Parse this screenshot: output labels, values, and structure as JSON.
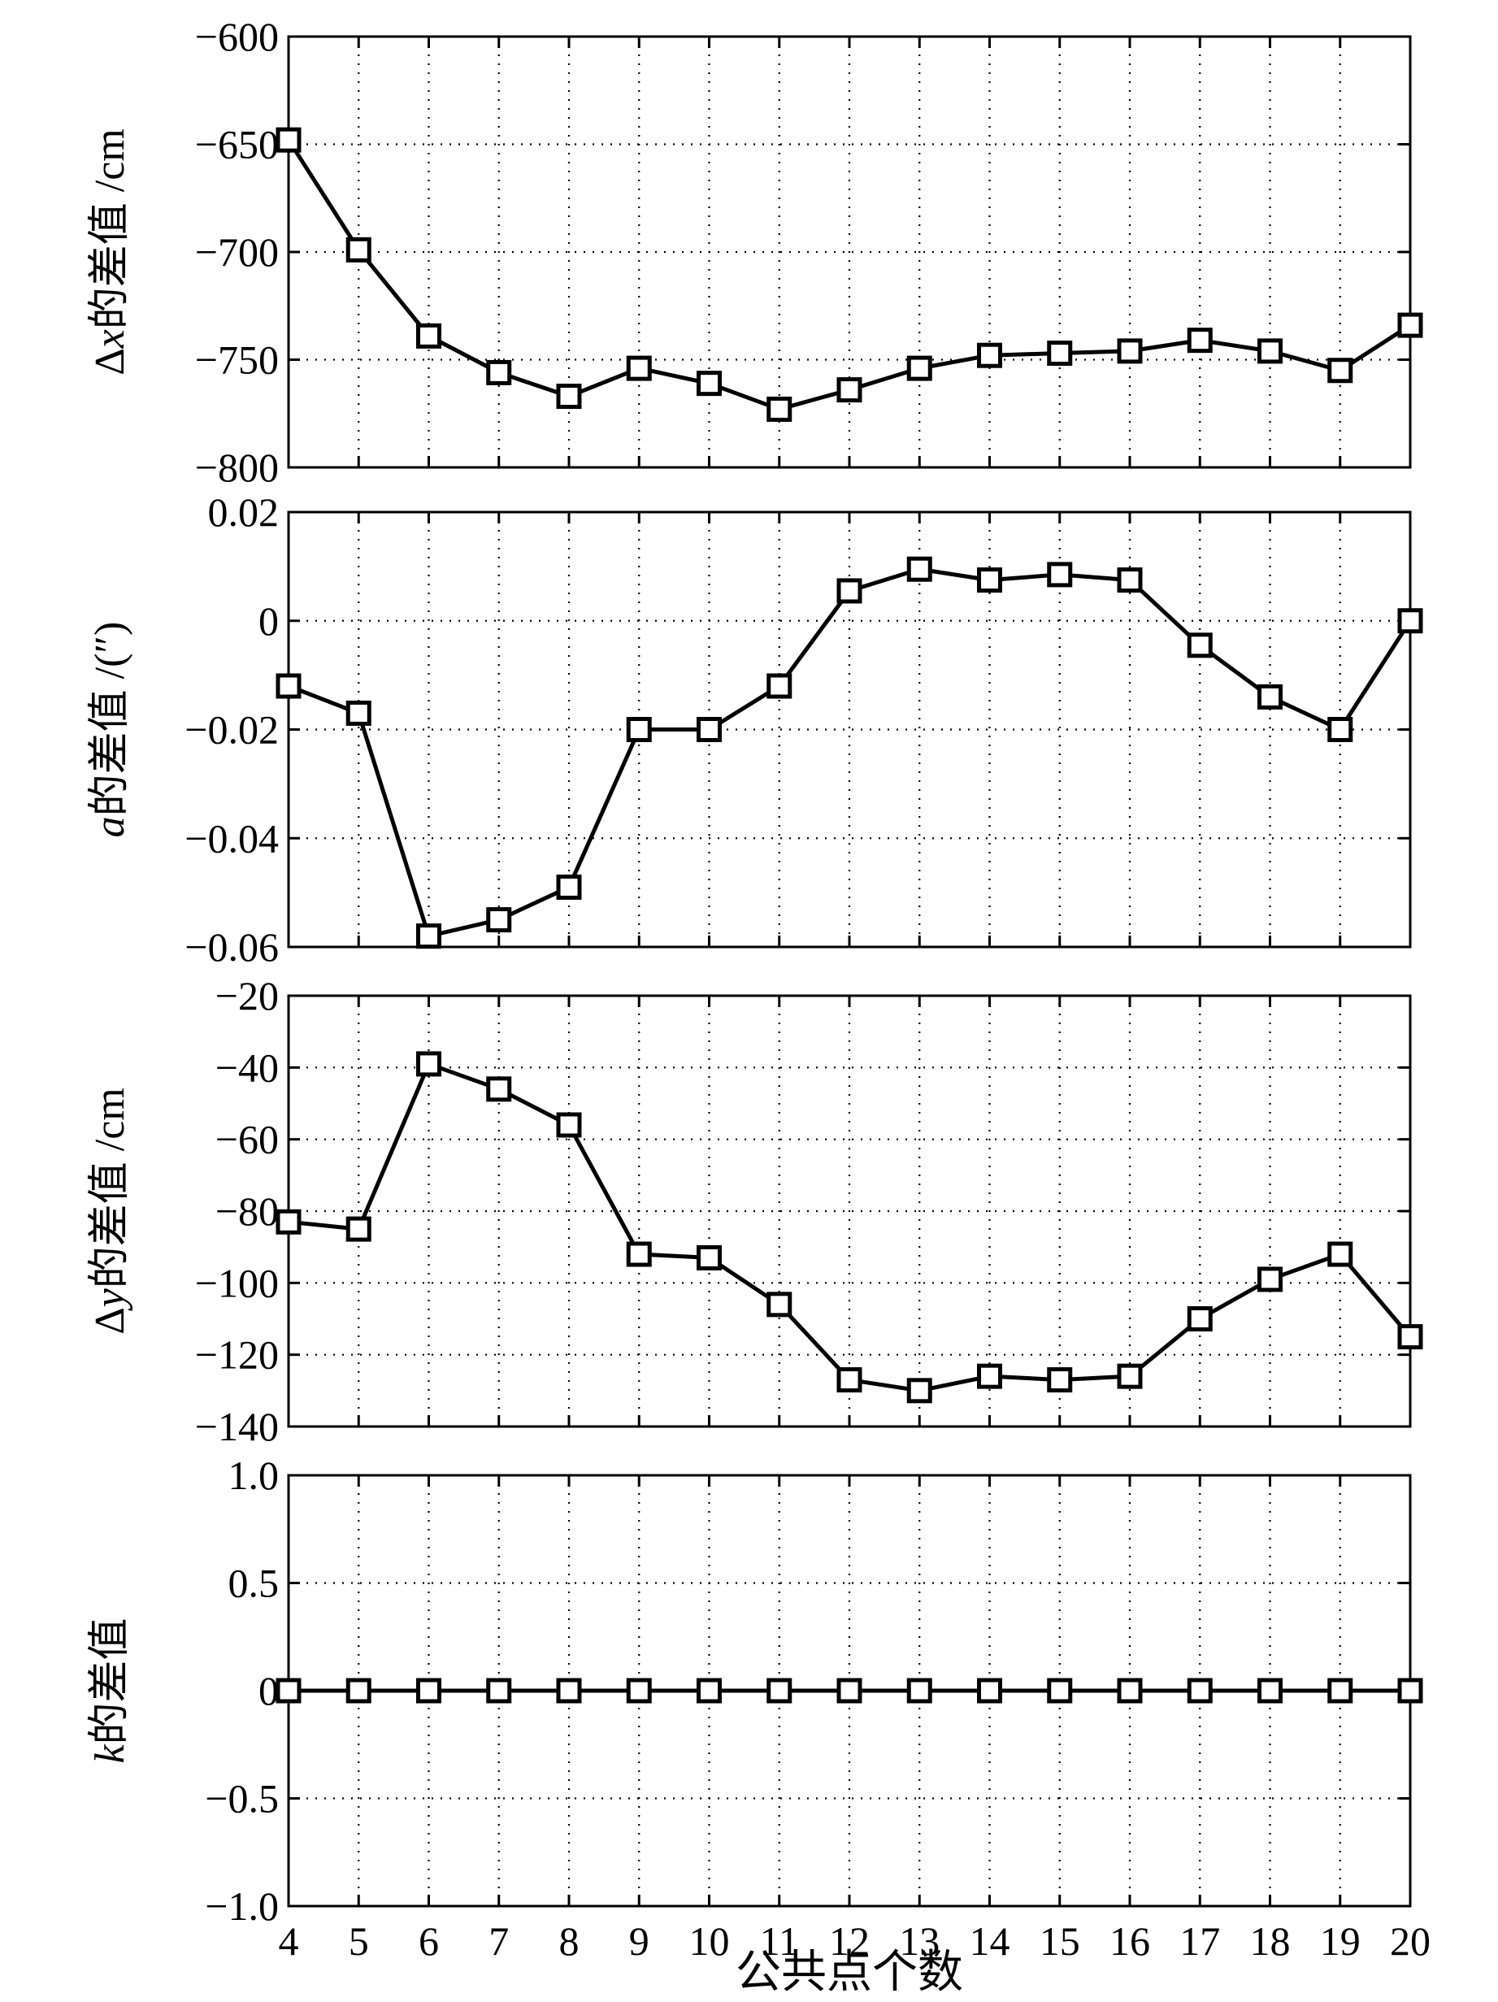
{
  "xlabel": "公共点个数",
  "chart_data": [
    {
      "type": "line",
      "ylabel_prefix": "Δ",
      "ylabel_var": "x",
      "ylabel_suffix": "的差值 /cm",
      "ylim": [
        -800,
        -600
      ],
      "yticks": [
        -600,
        -650,
        -700,
        -750,
        -800
      ],
      "ytick_labels": [
        "−600",
        "−650",
        "−700",
        "−750",
        "−800"
      ],
      "x": [
        4,
        5,
        6,
        7,
        8,
        9,
        10,
        11,
        12,
        13,
        14,
        15,
        16,
        17,
        18,
        19,
        20
      ],
      "xticks": [
        4,
        5,
        6,
        7,
        8,
        9,
        10,
        11,
        12,
        13,
        14,
        15,
        16,
        17,
        18,
        19,
        20
      ],
      "values": [
        -648,
        -699,
        -739,
        -756,
        -767,
        -754,
        -761,
        -773,
        -764,
        -754,
        -748,
        -747,
        -746,
        -741,
        -746,
        -755,
        -734
      ],
      "grid": true
    },
    {
      "type": "line",
      "ylabel_prefix": "",
      "ylabel_var": "a",
      "ylabel_suffix": "的差值 /(″)",
      "ylim": [
        -0.06,
        0.02
      ],
      "yticks": [
        0.02,
        0,
        -0.02,
        -0.04,
        -0.06
      ],
      "ytick_labels": [
        "0.02",
        "0",
        "−0.02",
        "−0.04",
        "−0.06"
      ],
      "x": [
        4,
        5,
        6,
        7,
        8,
        9,
        10,
        11,
        12,
        13,
        14,
        15,
        16,
        17,
        18,
        19,
        20
      ],
      "xticks": [
        4,
        5,
        6,
        7,
        8,
        9,
        10,
        11,
        12,
        13,
        14,
        15,
        16,
        17,
        18,
        19,
        20
      ],
      "values": [
        -0.012,
        -0.017,
        -0.058,
        -0.055,
        -0.049,
        -0.02,
        -0.02,
        -0.012,
        0.0055,
        0.0095,
        0.0075,
        0.0085,
        0.0075,
        -0.0045,
        -0.014,
        -0.02,
        0.0
      ],
      "grid": true
    },
    {
      "type": "line",
      "ylabel_prefix": "Δ",
      "ylabel_var": "y",
      "ylabel_suffix": "的差值 /cm",
      "ylim": [
        -140,
        -20
      ],
      "yticks": [
        -20,
        -40,
        -60,
        -80,
        -100,
        -120,
        -140
      ],
      "ytick_labels": [
        "−20",
        "−40",
        "−60",
        "−80",
        "−100",
        "−120",
        "−140"
      ],
      "x": [
        4,
        5,
        6,
        7,
        8,
        9,
        10,
        11,
        12,
        13,
        14,
        15,
        16,
        17,
        18,
        19,
        20
      ],
      "xticks": [
        4,
        5,
        6,
        7,
        8,
        9,
        10,
        11,
        12,
        13,
        14,
        15,
        16,
        17,
        18,
        19,
        20
      ],
      "values": [
        -83,
        -85,
        -39,
        -46,
        -56,
        -92,
        -93,
        -106,
        -127,
        -130,
        -126,
        -127,
        -126,
        -110,
        -99,
        -92,
        -115
      ],
      "grid": true
    },
    {
      "type": "line",
      "ylabel_prefix": "",
      "ylabel_var": "k",
      "ylabel_suffix": "的差值",
      "ylim": [
        -1.0,
        1.0
      ],
      "yticks": [
        1.0,
        0.5,
        0,
        -0.5,
        -1.0
      ],
      "ytick_labels": [
        "1.0",
        "0.5",
        "0",
        "−0.5",
        "−1.0"
      ],
      "x": [
        4,
        5,
        6,
        7,
        8,
        9,
        10,
        11,
        12,
        13,
        14,
        15,
        16,
        17,
        18,
        19,
        20
      ],
      "xticks": [
        4,
        5,
        6,
        7,
        8,
        9,
        10,
        11,
        12,
        13,
        14,
        15,
        16,
        17,
        18,
        19,
        20
      ],
      "values": [
        0,
        0,
        0,
        0,
        0,
        0,
        0,
        0,
        0,
        0,
        0,
        0,
        0,
        0,
        0,
        0,
        0
      ],
      "grid": true
    }
  ]
}
